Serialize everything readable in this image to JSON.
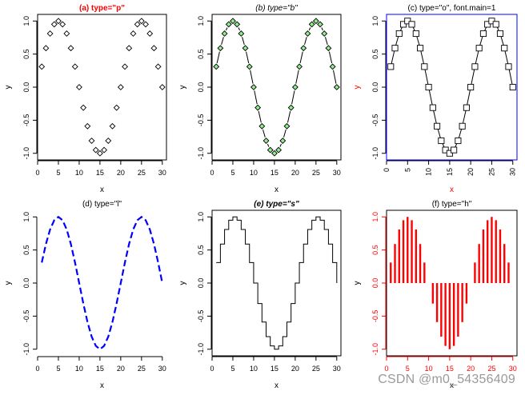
{
  "chart_data": [
    {
      "type": "scatter",
      "subtype": "p",
      "title": "(a) type=\"p\"",
      "title_color": "#ff0000",
      "title_style": "bold",
      "xlabel": "x",
      "ylabel": "y",
      "xlim": [
        0,
        31
      ],
      "ylim": [
        -1.1,
        1.1
      ],
      "xticks": [
        0,
        5,
        10,
        15,
        20,
        25,
        30
      ],
      "yticks": [
        -1.0,
        -0.5,
        0.0,
        0.5,
        1.0
      ],
      "ytick_labels": [
        "-1.0",
        "-0.5",
        "0.0",
        "0.5",
        "1.0"
      ],
      "marker": "diamond",
      "marker_fill": "none",
      "color": "#000000",
      "box_color": "#000000",
      "axis_color": "#000000",
      "tick_label_color": "#000000",
      "x": [
        1,
        2,
        3,
        4,
        5,
        6,
        7,
        8,
        9,
        10,
        11,
        12,
        13,
        14,
        15,
        16,
        17,
        18,
        19,
        20,
        21,
        22,
        23,
        24,
        25,
        26,
        27,
        28,
        29,
        30
      ],
      "y": [
        0.31,
        0.59,
        0.81,
        0.95,
        1.0,
        0.95,
        0.81,
        0.59,
        0.31,
        0.0,
        -0.31,
        -0.59,
        -0.81,
        -0.95,
        -1.0,
        -0.95,
        -0.81,
        -0.59,
        -0.31,
        0.0,
        0.31,
        0.59,
        0.81,
        0.95,
        1.0,
        0.95,
        0.81,
        0.59,
        0.31,
        0.0
      ]
    },
    {
      "type": "scatter",
      "subtype": "b",
      "title": "(b) type=\"b\"",
      "title_color": "#000000",
      "title_style": "italic",
      "xlabel": "x",
      "ylabel": "y",
      "xlim": [
        0,
        31
      ],
      "ylim": [
        -1.1,
        1.1
      ],
      "xticks": [
        0,
        5,
        10,
        15,
        20,
        25,
        30
      ],
      "yticks": [
        -1.0,
        -0.5,
        0.0,
        0.5,
        1.0
      ],
      "ytick_labels": [
        "-1.0",
        "-0.5",
        "0.0",
        "0.5",
        "1.0"
      ],
      "marker": "diamond",
      "marker_fill": "#90ee90",
      "color": "#000000",
      "box_color": "#000000",
      "axis_color": "#000000",
      "tick_label_color": "#000000",
      "x": [
        1,
        2,
        3,
        4,
        5,
        6,
        7,
        8,
        9,
        10,
        11,
        12,
        13,
        14,
        15,
        16,
        17,
        18,
        19,
        20,
        21,
        22,
        23,
        24,
        25,
        26,
        27,
        28,
        29,
        30
      ],
      "y": [
        0.31,
        0.59,
        0.81,
        0.95,
        1.0,
        0.95,
        0.81,
        0.59,
        0.31,
        0.0,
        -0.31,
        -0.59,
        -0.81,
        -0.95,
        -1.0,
        -0.95,
        -0.81,
        -0.59,
        -0.31,
        0.0,
        0.31,
        0.59,
        0.81,
        0.95,
        1.0,
        0.95,
        0.81,
        0.59,
        0.31,
        0.0
      ]
    },
    {
      "type": "line",
      "subtype": "o",
      "title": "(c) type=\"o\", font.main=1",
      "title_color": "#000000",
      "title_style": "plain",
      "xlabel": "x",
      "xlabel_color": "#ff0000",
      "ylabel": "y",
      "ylabel_color": "#ff0000",
      "xlim": [
        0,
        31
      ],
      "ylim": [
        -1.1,
        1.1
      ],
      "xticks": [
        0,
        5,
        10,
        15,
        20,
        25,
        30
      ],
      "yticks": [
        -1.0,
        -0.5,
        0.0,
        0.5,
        1.0
      ],
      "ytick_labels": [
        "-1.0",
        "-0.5",
        "0.0",
        "0.5",
        "1.0"
      ],
      "marker": "square",
      "marker_fill": "#ffffff",
      "color": "#000000",
      "box_color": "#0000ff",
      "axis_color": "#000000",
      "tick_label_color": "#000000",
      "x_tick_rotate": true,
      "x": [
        1,
        2,
        3,
        4,
        5,
        6,
        7,
        8,
        9,
        10,
        11,
        12,
        13,
        14,
        15,
        16,
        17,
        18,
        19,
        20,
        21,
        22,
        23,
        24,
        25,
        26,
        27,
        28,
        29,
        30
      ],
      "y": [
        0.31,
        0.59,
        0.81,
        0.95,
        1.0,
        0.95,
        0.81,
        0.59,
        0.31,
        0.0,
        -0.31,
        -0.59,
        -0.81,
        -0.95,
        -1.0,
        -0.95,
        -0.81,
        -0.59,
        -0.31,
        0.0,
        0.31,
        0.59,
        0.81,
        0.95,
        1.0,
        0.95,
        0.81,
        0.59,
        0.31,
        0.0
      ]
    },
    {
      "type": "line",
      "subtype": "l",
      "title": "(d) type=\"l\"",
      "title_color": "#000000",
      "title_style": "plain",
      "xlabel": "x",
      "ylabel": "y",
      "xlim": [
        0,
        31
      ],
      "ylim": [
        -1.1,
        1.1
      ],
      "xticks": [
        0,
        5,
        10,
        15,
        20,
        25,
        30
      ],
      "yticks": [
        -1.0,
        -0.5,
        0.0,
        0.5,
        1.0
      ],
      "ytick_labels": [
        "-1.0",
        "-0.5",
        "0.0",
        "0.5",
        "1.0"
      ],
      "line_style": "dashed",
      "color": "#0000ff",
      "box_color": "#ffffff",
      "show_box": false,
      "axis_color": "#000000",
      "tick_label_color": "#000000",
      "x": [
        1,
        2,
        3,
        4,
        5,
        6,
        7,
        8,
        9,
        10,
        11,
        12,
        13,
        14,
        15,
        16,
        17,
        18,
        19,
        20,
        21,
        22,
        23,
        24,
        25,
        26,
        27,
        28,
        29,
        30
      ],
      "y": [
        0.31,
        0.59,
        0.81,
        0.95,
        1.0,
        0.95,
        0.81,
        0.59,
        0.31,
        0.0,
        -0.31,
        -0.59,
        -0.81,
        -0.95,
        -1.0,
        -0.95,
        -0.81,
        -0.59,
        -0.31,
        0.0,
        0.31,
        0.59,
        0.81,
        0.95,
        1.0,
        0.95,
        0.81,
        0.59,
        0.31,
        0.0
      ]
    },
    {
      "type": "line",
      "subtype": "s",
      "title": "(e) type=\"s\"",
      "title_color": "#000000",
      "title_style": "bold-italic",
      "xlabel": "x",
      "ylabel": "y",
      "xlim": [
        0,
        31
      ],
      "ylim": [
        -1.1,
        1.1
      ],
      "xticks": [
        0,
        5,
        10,
        15,
        20,
        25,
        30
      ],
      "yticks": [
        -1.0,
        -0.5,
        0.0,
        0.5,
        1.0
      ],
      "ytick_labels": [
        "-1.0",
        "-0.5",
        "0.0",
        "0.5",
        "1.0"
      ],
      "color": "#000000",
      "box_color": "#000000",
      "axis_color": "#000000",
      "tick_label_color": "#000000",
      "x": [
        1,
        2,
        3,
        4,
        5,
        6,
        7,
        8,
        9,
        10,
        11,
        12,
        13,
        14,
        15,
        16,
        17,
        18,
        19,
        20,
        21,
        22,
        23,
        24,
        25,
        26,
        27,
        28,
        29,
        30
      ],
      "y": [
        0.31,
        0.59,
        0.81,
        0.95,
        1.0,
        0.95,
        0.81,
        0.59,
        0.31,
        0.0,
        -0.31,
        -0.59,
        -0.81,
        -0.95,
        -1.0,
        -0.95,
        -0.81,
        -0.59,
        -0.31,
        0.0,
        0.31,
        0.59,
        0.81,
        0.95,
        1.0,
        0.95,
        0.81,
        0.59,
        0.31,
        0.0
      ]
    },
    {
      "type": "bar",
      "subtype": "h",
      "title": "(f) type=\"h\"",
      "title_color": "#000000",
      "title_style": "plain",
      "xlabel": "x",
      "ylabel": "y",
      "xlim": [
        0,
        31
      ],
      "ylim": [
        -1.1,
        1.1
      ],
      "xticks": [
        0,
        5,
        10,
        15,
        20,
        25,
        30
      ],
      "yticks": [
        -1.0,
        -0.5,
        0.0,
        0.5,
        1.0
      ],
      "ytick_labels": [
        "-1.0",
        "-0.5",
        "0.0",
        "0.5",
        "1.0"
      ],
      "color": "#ff0000",
      "box_color": "#000000",
      "axis_color": "#ff0000",
      "tick_label_color": "#ff0000",
      "x": [
        1,
        2,
        3,
        4,
        5,
        6,
        7,
        8,
        9,
        10,
        11,
        12,
        13,
        14,
        15,
        16,
        17,
        18,
        19,
        20,
        21,
        22,
        23,
        24,
        25,
        26,
        27,
        28,
        29,
        30
      ],
      "y": [
        0.31,
        0.59,
        0.81,
        0.95,
        1.0,
        0.95,
        0.81,
        0.59,
        0.31,
        0.0,
        -0.31,
        -0.59,
        -0.81,
        -0.95,
        -1.0,
        -0.95,
        -0.81,
        -0.59,
        -0.31,
        0.0,
        0.31,
        0.59,
        0.81,
        0.95,
        1.0,
        0.95,
        0.81,
        0.59,
        0.31,
        0.0
      ]
    }
  ],
  "watermark": "CSDN @m0_54356409"
}
